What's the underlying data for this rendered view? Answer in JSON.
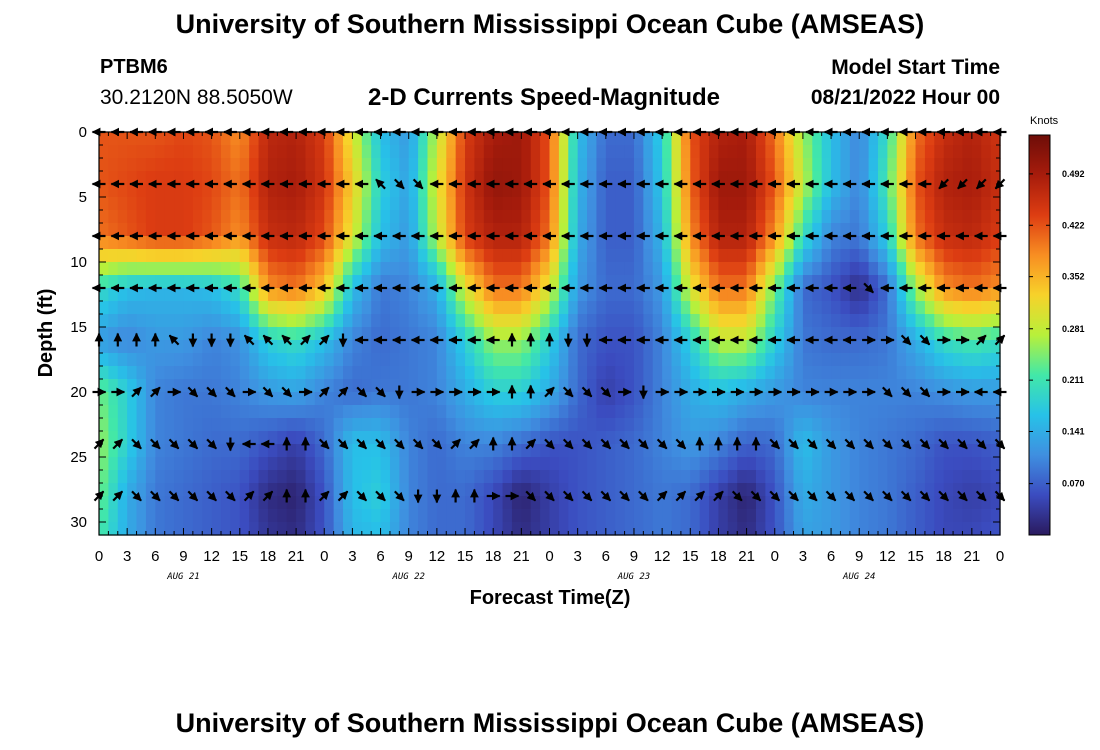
{
  "header": {
    "title": "University of Southern Mississippi Ocean Cube (AMSEAS)",
    "station": "PTBM6",
    "coordinates": "30.2120N  88.5050W",
    "subtitle": "2-D Currents Speed-Magnitude",
    "model_start_label": "Model Start Time",
    "model_start_value": "08/21/2022 Hour 00"
  },
  "footer": {
    "title": "University of Southern Mississippi Ocean Cube (AMSEAS)"
  },
  "chart_data": {
    "type": "heatmap",
    "title": "2-D Currents Speed-Magnitude",
    "xlabel": "Forecast Time(Z)",
    "ylabel": "Depth (ft)",
    "xlim": [
      0,
      96
    ],
    "ylim": [
      31,
      0
    ],
    "x_tick_labels": [
      "0",
      "3",
      "6",
      "9",
      "12",
      "15",
      "18",
      "21",
      "0",
      "3",
      "6",
      "9",
      "12",
      "15",
      "18",
      "21",
      "0",
      "3",
      "6",
      "9",
      "12",
      "15",
      "18",
      "21",
      "0",
      "3",
      "6",
      "9",
      "12",
      "15",
      "18",
      "21",
      "0"
    ],
    "day_labels": [
      {
        "label": "AUG 21",
        "hour": 9
      },
      {
        "label": "AUG 22",
        "hour": 33
      },
      {
        "label": "AUG 23",
        "hour": 57
      },
      {
        "label": "AUG 24",
        "hour": 81
      }
    ],
    "y_ticks": [
      0,
      5,
      10,
      15,
      20,
      25,
      30
    ],
    "colorbar": {
      "unit": "Knots",
      "range": [
        0,
        0.545
      ],
      "ticks": [
        0.07,
        0.141,
        0.211,
        0.281,
        0.352,
        0.422,
        0.492
      ],
      "tick_labels": [
        "0.070",
        "0.141",
        "0.211",
        "0.281",
        "0.352",
        "0.422",
        "0.492"
      ]
    },
    "colors": [
      "#2a1a5e",
      "#3b4cc0",
      "#3f8fe0",
      "#27c2e8",
      "#42e8a8",
      "#b8f03a",
      "#f7d22a",
      "#f88e22",
      "#dd3d12",
      "#a71c0c",
      "#6e0d08"
    ],
    "speed_grid": {
      "depths_ft": [
        0,
        4,
        8,
        12,
        16,
        20,
        24,
        28,
        31
      ],
      "hours": [
        0,
        3,
        6,
        9,
        12,
        15,
        18,
        21,
        24,
        27,
        30,
        33,
        36,
        39,
        42,
        45,
        48,
        51,
        54,
        57,
        60,
        63,
        66,
        69,
        72,
        75,
        78,
        81,
        84,
        87,
        90,
        93,
        96
      ],
      "values": [
        [
          0.42,
          0.42,
          0.42,
          0.43,
          0.42,
          0.38,
          0.47,
          0.48,
          0.44,
          0.3,
          0.16,
          0.12,
          0.28,
          0.44,
          0.49,
          0.5,
          0.42,
          0.16,
          0.08,
          0.08,
          0.18,
          0.42,
          0.48,
          0.49,
          0.4,
          0.26,
          0.16,
          0.1,
          0.2,
          0.4,
          0.46,
          0.48,
          0.45
        ],
        [
          0.42,
          0.43,
          0.44,
          0.44,
          0.43,
          0.4,
          0.48,
          0.49,
          0.45,
          0.33,
          0.18,
          0.13,
          0.3,
          0.45,
          0.51,
          0.5,
          0.42,
          0.15,
          0.07,
          0.07,
          0.17,
          0.41,
          0.5,
          0.5,
          0.42,
          0.28,
          0.16,
          0.1,
          0.22,
          0.42,
          0.48,
          0.49,
          0.46
        ],
        [
          0.4,
          0.42,
          0.44,
          0.44,
          0.42,
          0.38,
          0.46,
          0.47,
          0.43,
          0.3,
          0.16,
          0.12,
          0.28,
          0.44,
          0.48,
          0.48,
          0.4,
          0.14,
          0.07,
          0.07,
          0.15,
          0.38,
          0.48,
          0.48,
          0.38,
          0.2,
          0.1,
          0.09,
          0.18,
          0.4,
          0.46,
          0.47,
          0.44
        ],
        [
          0.2,
          0.16,
          0.15,
          0.15,
          0.16,
          0.2,
          0.38,
          0.4,
          0.34,
          0.16,
          0.09,
          0.1,
          0.14,
          0.3,
          0.4,
          0.4,
          0.3,
          0.12,
          0.08,
          0.08,
          0.12,
          0.3,
          0.4,
          0.4,
          0.24,
          0.08,
          0.06,
          0.02,
          0.08,
          0.26,
          0.38,
          0.4,
          0.38
        ],
        [
          0.12,
          0.1,
          0.12,
          0.12,
          0.1,
          0.11,
          0.18,
          0.2,
          0.16,
          0.1,
          0.08,
          0.09,
          0.1,
          0.18,
          0.26,
          0.26,
          0.18,
          0.08,
          0.06,
          0.06,
          0.1,
          0.18,
          0.28,
          0.28,
          0.18,
          0.09,
          0.08,
          0.08,
          0.09,
          0.14,
          0.2,
          0.22,
          0.2
        ],
        [
          0.24,
          0.18,
          0.1,
          0.09,
          0.09,
          0.1,
          0.12,
          0.13,
          0.1,
          0.08,
          0.09,
          0.09,
          0.1,
          0.14,
          0.18,
          0.18,
          0.14,
          0.08,
          0.04,
          0.06,
          0.1,
          0.14,
          0.16,
          0.14,
          0.12,
          0.1,
          0.1,
          0.1,
          0.1,
          0.1,
          0.11,
          0.12,
          0.12
        ],
        [
          0.26,
          0.18,
          0.1,
          0.09,
          0.08,
          0.08,
          0.06,
          0.04,
          0.08,
          0.16,
          0.16,
          0.1,
          0.08,
          0.1,
          0.1,
          0.08,
          0.06,
          0.06,
          0.07,
          0.08,
          0.1,
          0.12,
          0.1,
          0.07,
          0.08,
          0.16,
          0.12,
          0.1,
          0.09,
          0.08,
          0.06,
          0.06,
          0.07
        ],
        [
          0.24,
          0.14,
          0.09,
          0.08,
          0.07,
          0.06,
          0.02,
          0.01,
          0.06,
          0.16,
          0.18,
          0.1,
          0.08,
          0.08,
          0.05,
          0.01,
          0.04,
          0.06,
          0.07,
          0.08,
          0.09,
          0.08,
          0.04,
          0.01,
          0.06,
          0.14,
          0.12,
          0.1,
          0.09,
          0.07,
          0.05,
          0.04,
          0.05
        ],
        [
          0.22,
          0.14,
          0.09,
          0.08,
          0.07,
          0.06,
          0.03,
          0.02,
          0.06,
          0.15,
          0.16,
          0.1,
          0.08,
          0.08,
          0.05,
          0.02,
          0.04,
          0.06,
          0.07,
          0.08,
          0.09,
          0.08,
          0.04,
          0.02,
          0.06,
          0.13,
          0.12,
          0.1,
          0.09,
          0.07,
          0.05,
          0.05,
          0.06
        ]
      ]
    },
    "current_vectors": {
      "depths_ft": [
        0,
        4,
        8,
        12,
        16,
        20,
        24,
        28
      ],
      "hours_step": 2,
      "directions": [
        [
          "W",
          "W",
          "W",
          "W",
          "W",
          "W",
          "W",
          "W",
          "W",
          "W",
          "W",
          "W",
          "W",
          "W",
          "W",
          "W",
          "W",
          "W",
          "W",
          "W",
          "W",
          "W",
          "W",
          "W",
          "W",
          "W",
          "W",
          "W",
          "W",
          "W",
          "W",
          "W",
          "W",
          "W",
          "W",
          "W",
          "W",
          "W",
          "W",
          "W",
          "W",
          "W",
          "W",
          "W",
          "W",
          "W",
          "W",
          "W",
          "W"
        ],
        [
          "W",
          "W",
          "W",
          "W",
          "W",
          "W",
          "W",
          "W",
          "W",
          "W",
          "W",
          "W",
          "W",
          "W",
          "W",
          "NW",
          "SE",
          "SE",
          "W",
          "W",
          "W",
          "W",
          "W",
          "W",
          "W",
          "W",
          "W",
          "W",
          "W",
          "W",
          "W",
          "W",
          "W",
          "W",
          "W",
          "W",
          "W",
          "W",
          "W",
          "W",
          "W",
          "W",
          "W",
          "W",
          "W",
          "SW",
          "SW",
          "SW",
          "SW"
        ],
        [
          "W",
          "W",
          "W",
          "W",
          "W",
          "W",
          "W",
          "W",
          "W",
          "W",
          "W",
          "W",
          "W",
          "W",
          "W",
          "W",
          "W",
          "W",
          "W",
          "W",
          "W",
          "W",
          "W",
          "W",
          "W",
          "W",
          "W",
          "W",
          "W",
          "W",
          "W",
          "W",
          "W",
          "W",
          "W",
          "W",
          "W",
          "W",
          "W",
          "W",
          "W",
          "W",
          "W",
          "W",
          "W",
          "W",
          "W",
          "W",
          "W"
        ],
        [
          "W",
          "W",
          "W",
          "W",
          "W",
          "W",
          "W",
          "W",
          "W",
          "W",
          "W",
          "W",
          "W",
          "W",
          "W",
          "W",
          "W",
          "W",
          "W",
          "W",
          "W",
          "W",
          "W",
          "W",
          "W",
          "W",
          "W",
          "W",
          "W",
          "W",
          "W",
          "W",
          "W",
          "W",
          "W",
          "W",
          "W",
          "W",
          "W",
          "W",
          "W",
          "SE",
          "W",
          "W",
          "W",
          "W",
          "W",
          "W",
          "W"
        ],
        [
          "N",
          "N",
          "N",
          "N",
          "NW",
          "S",
          "S",
          "S",
          "NW",
          "NW",
          "NW",
          "NE",
          "NE",
          "S",
          "W",
          "W",
          "W",
          "W",
          "W",
          "W",
          "W",
          "W",
          "N",
          "N",
          "N",
          "S",
          "S",
          "W",
          "W",
          "W",
          "W",
          "W",
          "W",
          "W",
          "W",
          "W",
          "W",
          "W",
          "W",
          "W",
          "W",
          "E",
          "E",
          "SE",
          "SE",
          "E",
          "E",
          "NE",
          "NE"
        ],
        [
          "E",
          "E",
          "NE",
          "NE",
          "E",
          "SE",
          "SE",
          "SE",
          "E",
          "SE",
          "SE",
          "E",
          "NE",
          "NE",
          "SE",
          "SE",
          "S",
          "E",
          "E",
          "E",
          "E",
          "E",
          "N",
          "N",
          "NE",
          "SE",
          "SE",
          "SE",
          "E",
          "S",
          "E",
          "E",
          "E",
          "E",
          "E",
          "E",
          "E",
          "E",
          "E",
          "E",
          "E",
          "E",
          "SE",
          "SE",
          "SE",
          "E",
          "E",
          "W",
          "W"
        ],
        [
          "NE",
          "NE",
          "SE",
          "SE",
          "SE",
          "SE",
          "SE",
          "S",
          "W",
          "W",
          "N",
          "N",
          "SE",
          "SE",
          "SE",
          "SE",
          "SE",
          "SE",
          "SE",
          "NE",
          "NE",
          "N",
          "N",
          "NE",
          "SE",
          "SE",
          "SE",
          "SE",
          "SE",
          "SE",
          "SE",
          "SE",
          "N",
          "N",
          "N",
          "N",
          "SE",
          "SE",
          "SE",
          "SE",
          "SE",
          "SE",
          "SE",
          "SE",
          "SE",
          "SE",
          "SE",
          "SE",
          "SE"
        ],
        [
          "NE",
          "NE",
          "SE",
          "SE",
          "SE",
          "SE",
          "SE",
          "SE",
          "NE",
          "NE",
          "N",
          "N",
          "NE",
          "NE",
          "SE",
          "SE",
          "SE",
          "S",
          "S",
          "N",
          "N",
          "E",
          "E",
          "SE",
          "SE",
          "SE",
          "SE",
          "SE",
          "SE",
          "SE",
          "NE",
          "NE",
          "NE",
          "NE",
          "SE",
          "SE",
          "SE",
          "SE",
          "SE",
          "SE",
          "SE",
          "SE",
          "SE",
          "SE",
          "SE",
          "SE",
          "SE",
          "SE",
          "SE"
        ]
      ]
    }
  }
}
